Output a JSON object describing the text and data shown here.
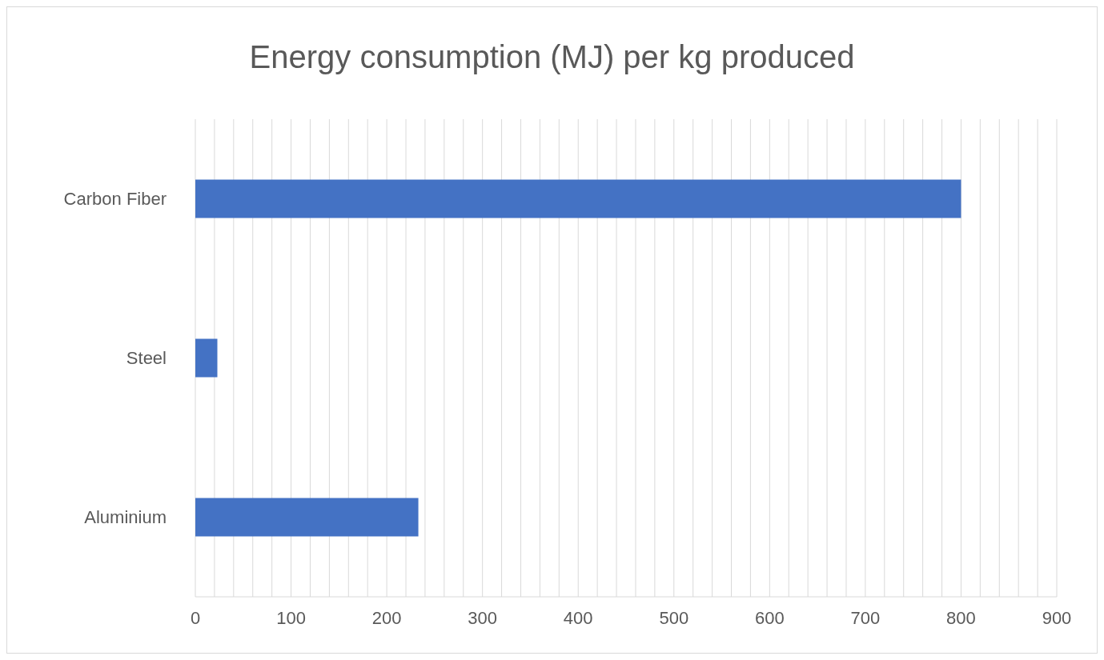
{
  "chart_data": {
    "type": "bar",
    "orientation": "horizontal",
    "title": "Energy consumption (MJ) per kg produced",
    "categories": [
      "Carbon Fiber",
      "Steel",
      "Aluminium"
    ],
    "values": [
      800,
      23,
      233
    ],
    "color": "#4472c4",
    "xlim": [
      0,
      900
    ],
    "xticks": [
      0,
      {
        "value": 20,
        "label": null
      },
      {
        "value": 40,
        "label": null
      },
      {
        "value": 60,
        "label": null
      },
      {
        "value": 80,
        "label": null
      },
      100,
      {
        "value": 120,
        "label": null
      },
      {
        "value": 140,
        "label": null
      },
      {
        "value": 160,
        "label": null
      },
      {
        "value": 180,
        "label": null
      },
      200,
      {
        "value": 220,
        "label": null
      },
      {
        "value": 240,
        "label": null
      },
      {
        "value": 260,
        "label": null
      },
      {
        "value": 280,
        "label": null
      },
      300,
      {
        "value": 320,
        "label": null
      },
      {
        "value": 340,
        "label": null
      },
      {
        "value": 360,
        "label": null
      },
      {
        "value": 380,
        "label": null
      },
      400,
      {
        "value": 420,
        "label": null
      },
      {
        "value": 440,
        "label": null
      },
      {
        "value": 460,
        "label": null
      },
      {
        "value": 480,
        "label": null
      },
      500,
      {
        "value": 520,
        "label": null
      },
      {
        "value": 540,
        "label": null
      },
      {
        "value": 560,
        "label": null
      },
      {
        "value": 580,
        "label": null
      },
      600,
      {
        "value": 620,
        "label": null
      },
      {
        "value": 640,
        "label": null
      },
      {
        "value": 660,
        "label": null
      },
      {
        "value": 680,
        "label": null
      },
      700,
      {
        "value": 720,
        "label": null
      },
      {
        "value": 740,
        "label": null
      },
      {
        "value": 760,
        "label": null
      },
      {
        "value": 780,
        "label": null
      },
      800,
      {
        "value": 820,
        "label": null
      },
      {
        "value": 840,
        "label": null
      },
      {
        "value": 860,
        "label": null
      },
      {
        "value": 880,
        "label": null
      },
      900
    ],
    "grid": "x"
  }
}
